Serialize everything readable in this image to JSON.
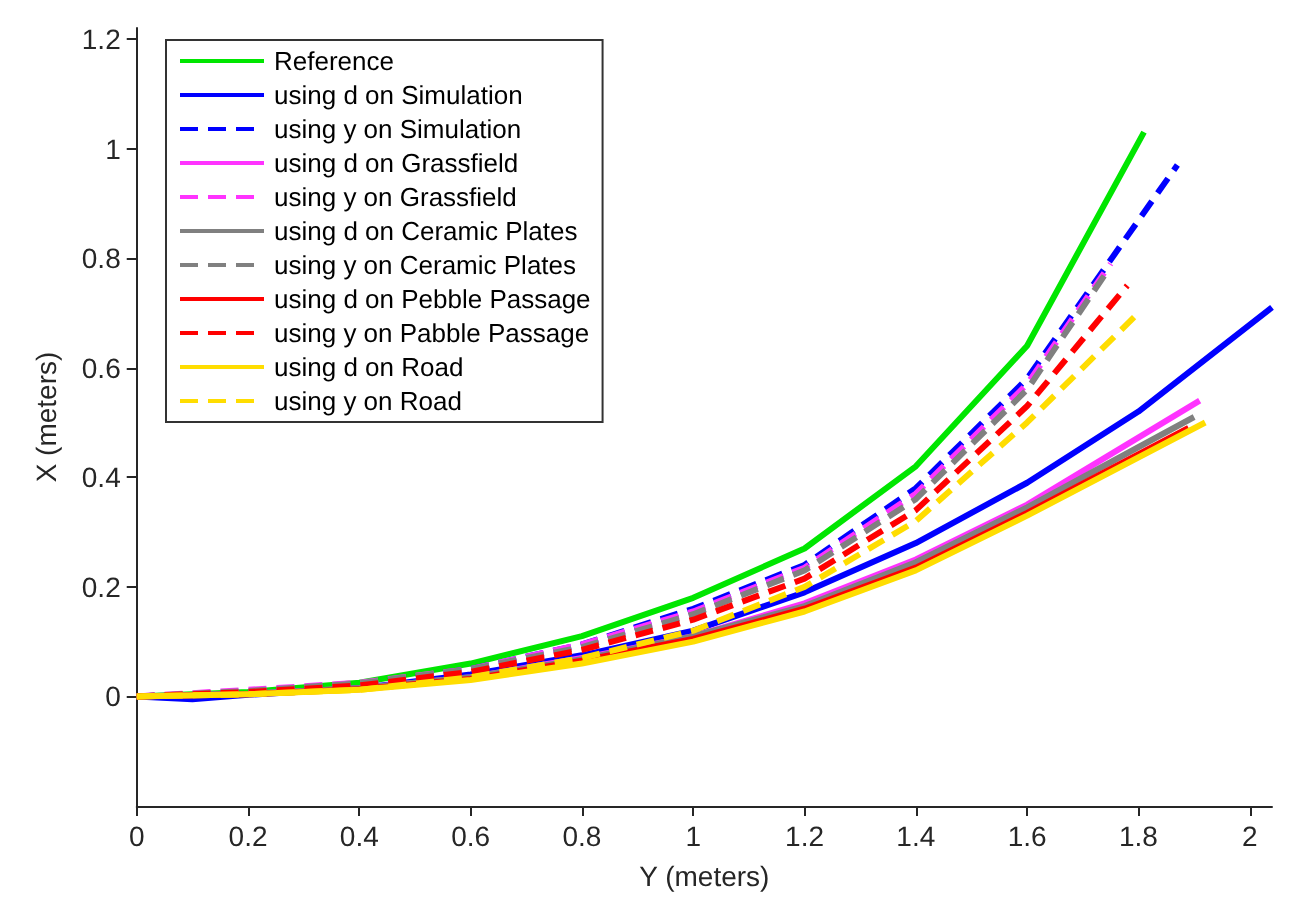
{
  "chart_data": {
    "type": "line",
    "xlabel": "Y (meters)",
    "ylabel": "X (meters)",
    "xlim": [
      0,
      2.04
    ],
    "xticks": [
      0,
      0.2,
      0.4,
      0.6,
      0.8,
      1,
      1.2,
      1.4,
      1.6,
      1.8,
      2
    ],
    "ylim": [
      -0.2,
      1.22
    ],
    "yticks": [
      0,
      0.2,
      0.4,
      0.6,
      0.8,
      1,
      1.2
    ],
    "grid": false,
    "legend": "top left",
    "marker": "none",
    "series": [
      {
        "name": "Reference",
        "color": "#00e600",
        "line_style": "solid",
        "x": [
          0,
          0.2,
          0.4,
          0.6,
          0.8,
          1,
          1.2,
          1.4,
          1.6,
          1.81
        ],
        "values": [
          0,
          0.008,
          0.025,
          0.06,
          0.11,
          0.18,
          0.27,
          0.42,
          0.64,
          1.03
        ]
      },
      {
        "name": "using d on Simulation",
        "color": "#0000ff",
        "line_style": "solid",
        "x": [
          0,
          0.1,
          0.2,
          0.4,
          0.6,
          0.8,
          1,
          1.2,
          1.4,
          1.6,
          1.8,
          2.04
        ],
        "values": [
          0,
          -0.005,
          0.003,
          0.015,
          0.04,
          0.075,
          0.12,
          0.19,
          0.28,
          0.39,
          0.52,
          0.71
        ]
      },
      {
        "name": "using y on Simulation",
        "color": "#0000ff",
        "line_style": "dashed",
        "x": [
          0,
          0.2,
          0.4,
          0.6,
          0.8,
          1,
          1.2,
          1.4,
          1.6,
          1.87
        ],
        "values": [
          0,
          0.008,
          0.022,
          0.05,
          0.095,
          0.16,
          0.24,
          0.38,
          0.58,
          0.97
        ]
      },
      {
        "name": "using d on Grassfield",
        "color": "#ff33ff",
        "line_style": "solid",
        "x": [
          0,
          0.2,
          0.4,
          0.6,
          0.8,
          1,
          1.2,
          1.4,
          1.6,
          1.91
        ],
        "values": [
          0,
          0.005,
          0.015,
          0.035,
          0.07,
          0.11,
          0.17,
          0.25,
          0.35,
          0.54
        ]
      },
      {
        "name": "using y on Grassfield",
        "color": "#ff33ff",
        "line_style": "dashed",
        "x": [
          0,
          0.2,
          0.4,
          0.6,
          0.8,
          1,
          1.2,
          1.4,
          1.6,
          1.75
        ],
        "values": [
          0,
          0.012,
          0.025,
          0.05,
          0.095,
          0.155,
          0.235,
          0.37,
          0.57,
          0.79
        ]
      },
      {
        "name": "using d on Ceramic Plates",
        "color": "#808080",
        "line_style": "solid",
        "x": [
          0,
          0.2,
          0.4,
          0.6,
          0.8,
          1,
          1.2,
          1.4,
          1.6,
          1.9
        ],
        "values": [
          0,
          0.005,
          0.015,
          0.035,
          0.068,
          0.11,
          0.165,
          0.245,
          0.345,
          0.51
        ]
      },
      {
        "name": "using y on Ceramic Plates",
        "color": "#808080",
        "line_style": "dashed",
        "x": [
          0,
          0.2,
          0.4,
          0.6,
          0.8,
          1,
          1.2,
          1.4,
          1.6,
          1.74
        ],
        "values": [
          0,
          0.01,
          0.024,
          0.05,
          0.09,
          0.15,
          0.23,
          0.36,
          0.56,
          0.77
        ]
      },
      {
        "name": "using d on Pebble Passage",
        "color": "#ff0000",
        "line_style": "solid",
        "x": [
          0,
          0.2,
          0.4,
          0.6,
          0.8,
          1,
          1.2,
          1.4,
          1.6,
          1.89
        ],
        "values": [
          0,
          0.004,
          0.013,
          0.032,
          0.065,
          0.105,
          0.16,
          0.235,
          0.335,
          0.49
        ]
      },
      {
        "name": "using y on Pabble Passage",
        "color": "#ff0000",
        "line_style": "dashed",
        "x": [
          0,
          0.2,
          0.4,
          0.6,
          0.8,
          1,
          1.2,
          1.4,
          1.6,
          1.78
        ],
        "values": [
          0,
          0.008,
          0.02,
          0.045,
          0.085,
          0.14,
          0.215,
          0.34,
          0.53,
          0.75
        ]
      },
      {
        "name": "using d on Road",
        "color": "#ffdd00",
        "line_style": "solid",
        "x": [
          0,
          0.2,
          0.4,
          0.6,
          0.8,
          1,
          1.2,
          1.4,
          1.6,
          1.92
        ],
        "values": [
          0,
          0.004,
          0.012,
          0.03,
          0.06,
          0.1,
          0.155,
          0.23,
          0.33,
          0.5
        ]
      },
      {
        "name": "using y on Road",
        "color": "#ffdd00",
        "line_style": "dashed",
        "x": [
          0,
          0.2,
          0.4,
          0.6,
          0.8,
          1,
          1.2,
          1.4,
          1.6,
          1.8
        ],
        "values": [
          0,
          0.004,
          0.012,
          0.035,
          0.07,
          0.12,
          0.2,
          0.32,
          0.5,
          0.7
        ]
      }
    ]
  }
}
